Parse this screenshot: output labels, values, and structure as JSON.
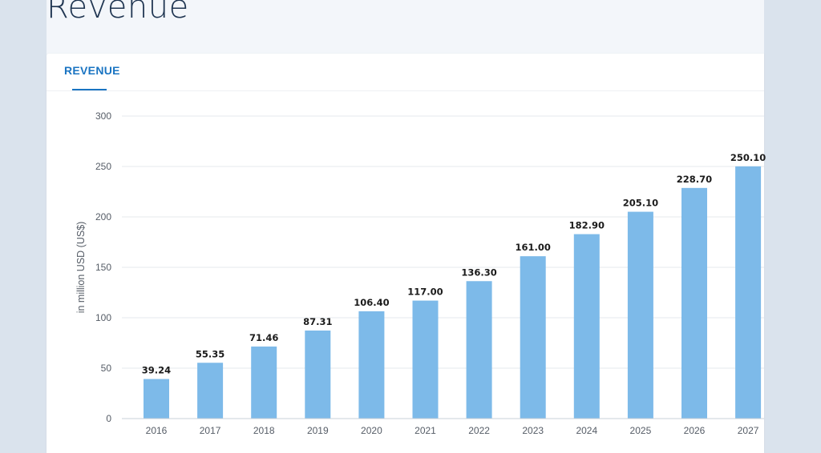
{
  "page": {
    "title": "Revenue",
    "tab_label": "REVENUE"
  },
  "colors": {
    "bar": "#7dbae9",
    "accent": "#1a74c2",
    "grid": "#e4e8ec"
  },
  "chart_data": {
    "type": "bar",
    "title": "",
    "xlabel": "",
    "ylabel": "in million USD (US$)",
    "categories": [
      "2016",
      "2017",
      "2018",
      "2019",
      "2020",
      "2021",
      "2022",
      "2023",
      "2024",
      "2025",
      "2026",
      "2027"
    ],
    "values": [
      39.24,
      55.35,
      71.46,
      87.31,
      106.4,
      117.0,
      136.3,
      161.0,
      182.9,
      205.1,
      228.7,
      250.1
    ],
    "data_labels": [
      "39.24",
      "55.35",
      "71.46",
      "87.31",
      "106.40",
      "117.00",
      "136.30",
      "161.00",
      "182.90",
      "205.10",
      "228.70",
      "250.10"
    ],
    "ylim": [
      0,
      300
    ],
    "yticks": [
      0,
      50,
      100,
      150,
      200,
      250,
      300
    ],
    "grid": true
  }
}
